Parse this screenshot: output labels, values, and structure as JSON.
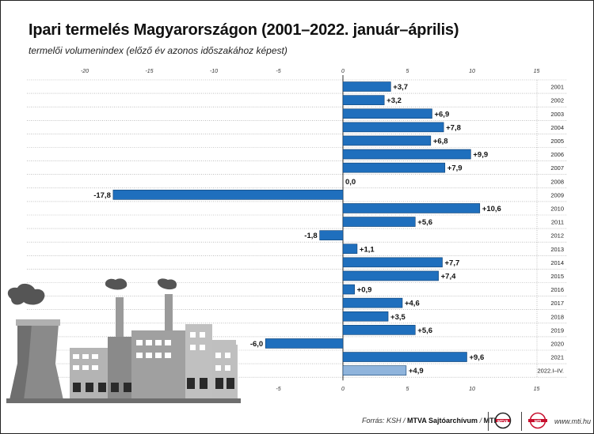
{
  "title": "Ipari termelés Magyarországon (2001–2022. január–április)",
  "subtitle": "termelői volumenindex (előző év azonos időszakához képest)",
  "footer": {
    "source_label": "Forrás: KSH /",
    "archive": "MTVA Sajtóarchívum",
    "slash": "/",
    "agency": "MTI",
    "logo_mtva": "MTVA",
    "logo_mti": "MTI",
    "site": "www.mti.hu"
  },
  "colors": {
    "bar": "#1f6fbd",
    "bar_last": "#8fb4dc",
    "bar_stroke": "#0d3d6e",
    "grid": "#9a9a9a",
    "factory": "#8a8a8a"
  },
  "icons": [
    "factory-illustration"
  ],
  "chart_data": {
    "type": "bar",
    "orientation": "horizontal",
    "categories": [
      "2001",
      "2002",
      "2003",
      "2004",
      "2005",
      "2006",
      "2007",
      "2008",
      "2009",
      "2010",
      "2011",
      "2012",
      "2013",
      "2014",
      "2015",
      "2016",
      "2017",
      "2018",
      "2019",
      "2020",
      "2021",
      "2022.I–IV."
    ],
    "values": [
      3.7,
      3.2,
      6.9,
      7.8,
      6.8,
      9.9,
      7.9,
      0.0,
      -17.8,
      10.6,
      5.6,
      -1.8,
      1.1,
      7.7,
      7.4,
      0.9,
      4.6,
      3.5,
      5.6,
      -6.0,
      9.6,
      4.9
    ],
    "labels": [
      "+3,7",
      "+3,2",
      "+6,9",
      "+7,8",
      "+6,8",
      "+9,9",
      "+7,9",
      "0,0",
      "-17,8",
      "+10,6",
      "+5,6",
      "-1,8",
      "+1,1",
      "+7,7",
      "+7,4",
      "+0,9",
      "+4,6",
      "+3,5",
      "+5,6",
      "-6,0",
      "+9,6",
      "+4,9"
    ],
    "xlim": [
      -25,
      15
    ],
    "ticks_top": [
      -20,
      -15,
      -10,
      -5,
      0,
      5,
      10,
      15
    ],
    "ticks_bottom": [
      -5,
      0,
      5,
      10,
      15
    ],
    "grid": true,
    "highlight_last": true
  }
}
